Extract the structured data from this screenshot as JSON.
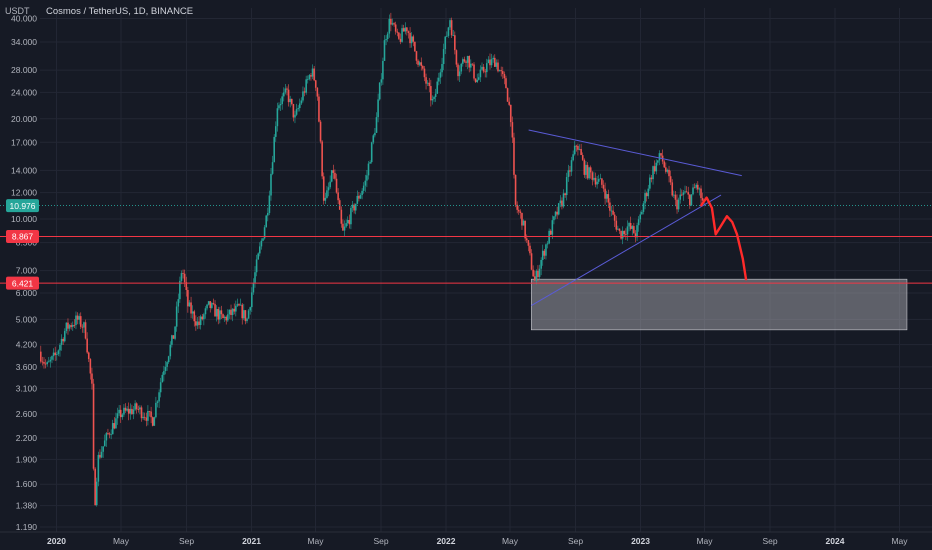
{
  "header": {
    "currency": "USDT",
    "symbol_line": "Cosmos / TetherUS, 1D, BINANCE"
  },
  "colors": {
    "background": "#161a25",
    "grid": "#232734",
    "axis_text": "#b2b5be",
    "candle_up": "#26a69a",
    "candle_down": "#ef5350",
    "level_red": "#f23645",
    "price_badge": "#26a69a",
    "trendline": "#5a5bd6",
    "projection": "#ff2a2a",
    "zone_fill": "#9a9ba3"
  },
  "chart_data": {
    "type": "candlestick",
    "y_scale": "log",
    "ylim": [
      1.15,
      43
    ],
    "x_axis_ticks": [
      "2020",
      "May",
      "Sep",
      "2021",
      "May",
      "Sep",
      "2022",
      "May",
      "Sep",
      "2023",
      "May",
      "Sep",
      "2024",
      "May"
    ],
    "x_axis_bold": [
      "2020",
      "2021",
      "2022",
      "2023",
      "2024"
    ],
    "y_axis_ticks": [
      "40.000",
      "34.000",
      "28.000",
      "24.000",
      "20.000",
      "17.000",
      "14.000",
      "12.000",
      "10.000",
      "8.500",
      "7.000",
      "6.000",
      "5.000",
      "4.200",
      "3.600",
      "3.100",
      "2.600",
      "2.200",
      "1.900",
      "1.600",
      "1.380",
      "1.190"
    ],
    "price_path": [
      [
        "2019-12-01",
        4.0
      ],
      [
        "2019-12-15",
        3.6
      ],
      [
        "2020-01-01",
        3.9
      ],
      [
        "2020-01-20",
        4.7
      ],
      [
        "2020-02-10",
        5.0
      ],
      [
        "2020-02-25",
        4.7
      ],
      [
        "2020-03-10",
        3.0
      ],
      [
        "2020-03-13",
        1.3
      ],
      [
        "2020-03-20",
        1.9
      ],
      [
        "2020-04-10",
        2.3
      ],
      [
        "2020-05-01",
        2.6
      ],
      [
        "2020-06-01",
        2.7
      ],
      [
        "2020-07-01",
        2.5
      ],
      [
        "2020-07-20",
        3.5
      ],
      [
        "2020-08-10",
        4.5
      ],
      [
        "2020-08-25",
        7.2
      ],
      [
        "2020-09-05",
        5.5
      ],
      [
        "2020-09-25",
        4.8
      ],
      [
        "2020-10-15",
        5.5
      ],
      [
        "2020-11-10",
        5.0
      ],
      [
        "2020-12-10",
        5.4
      ],
      [
        "2020-12-25",
        5.0
      ],
      [
        "2021-01-10",
        7.0
      ],
      [
        "2021-02-01",
        10.5
      ],
      [
        "2021-02-20",
        22.0
      ],
      [
        "2021-03-10",
        24.0
      ],
      [
        "2021-03-25",
        20.0
      ],
      [
        "2021-04-10",
        24.0
      ],
      [
        "2021-04-25",
        28.0
      ],
      [
        "2021-05-05",
        25.0
      ],
      [
        "2021-05-19",
        11.0
      ],
      [
        "2021-06-05",
        14.0
      ],
      [
        "2021-06-22",
        9.0
      ],
      [
        "2021-07-15",
        11.0
      ],
      [
        "2021-08-05",
        13.0
      ],
      [
        "2021-08-25",
        20.0
      ],
      [
        "2021-09-10",
        35.0
      ],
      [
        "2021-09-20",
        40.0
      ],
      [
        "2021-10-05",
        34.0
      ],
      [
        "2021-10-20",
        38.0
      ],
      [
        "2021-11-05",
        32.0
      ],
      [
        "2021-11-25",
        26.0
      ],
      [
        "2021-12-10",
        22.0
      ],
      [
        "2021-12-25",
        30.0
      ],
      [
        "2022-01-10",
        40.0
      ],
      [
        "2022-01-25",
        28.0
      ],
      [
        "2022-02-10",
        31.0
      ],
      [
        "2022-03-01",
        26.0
      ],
      [
        "2022-03-20",
        29.0
      ],
      [
        "2022-04-05",
        30.0
      ],
      [
        "2022-04-25",
        25.0
      ],
      [
        "2022-05-05",
        20.0
      ],
      [
        "2022-05-12",
        11.0
      ],
      [
        "2022-05-25",
        10.0
      ],
      [
        "2022-06-18",
        6.5
      ],
      [
        "2022-07-05",
        8.0
      ],
      [
        "2022-07-25",
        10.0
      ],
      [
        "2022-08-10",
        11.5
      ],
      [
        "2022-08-20",
        13.5
      ],
      [
        "2022-09-05",
        17.0
      ],
      [
        "2022-09-20",
        14.0
      ],
      [
        "2022-10-05",
        13.5
      ],
      [
        "2022-10-25",
        12.5
      ],
      [
        "2022-11-08",
        10.5
      ],
      [
        "2022-11-25",
        9.0
      ],
      [
        "2022-12-10",
        9.5
      ],
      [
        "2022-12-25",
        9.0
      ],
      [
        "2023-01-10",
        11.5
      ],
      [
        "2023-01-25",
        14.0
      ],
      [
        "2023-02-10",
        15.5
      ],
      [
        "2023-02-25",
        13.0
      ],
      [
        "2023-03-10",
        11.0
      ],
      [
        "2023-03-25",
        12.0
      ],
      [
        "2023-04-05",
        11.5
      ],
      [
        "2023-04-18",
        12.7
      ],
      [
        "2023-05-01",
        10.976
      ]
    ],
    "horizontal_levels": [
      8.867,
      6.421
    ],
    "price_labels": [
      {
        "label": "10.976",
        "value": 10.976,
        "color": "#26a69a"
      },
      {
        "label": "8.867",
        "value": 8.867,
        "color": "#f23645"
      },
      {
        "label": "6.421",
        "value": 6.421,
        "color": "#f23645"
      }
    ],
    "triangle": {
      "upper": [
        [
          "2022-06-05",
          18.5
        ],
        [
          "2023-07-10",
          13.5
        ]
      ],
      "lower": [
        [
          "2022-06-10",
          5.5
        ],
        [
          "2023-06-01",
          11.8
        ]
      ]
    },
    "projection_path": [
      [
        "2023-04-25",
        11.0
      ],
      [
        "2023-05-05",
        11.6
      ],
      [
        "2023-05-15",
        10.8
      ],
      [
        "2023-05-22",
        9.0
      ],
      [
        "2023-06-02",
        9.6
      ],
      [
        "2023-06-12",
        10.2
      ],
      [
        "2023-06-22",
        9.8
      ],
      [
        "2023-07-01",
        9.0
      ],
      [
        "2023-07-12",
        7.6
      ],
      [
        "2023-07-18",
        6.6
      ]
    ],
    "demand_zone": {
      "start": "2022-06-10",
      "end": "2024-05-15",
      "high": 6.6,
      "low": 4.65
    }
  }
}
